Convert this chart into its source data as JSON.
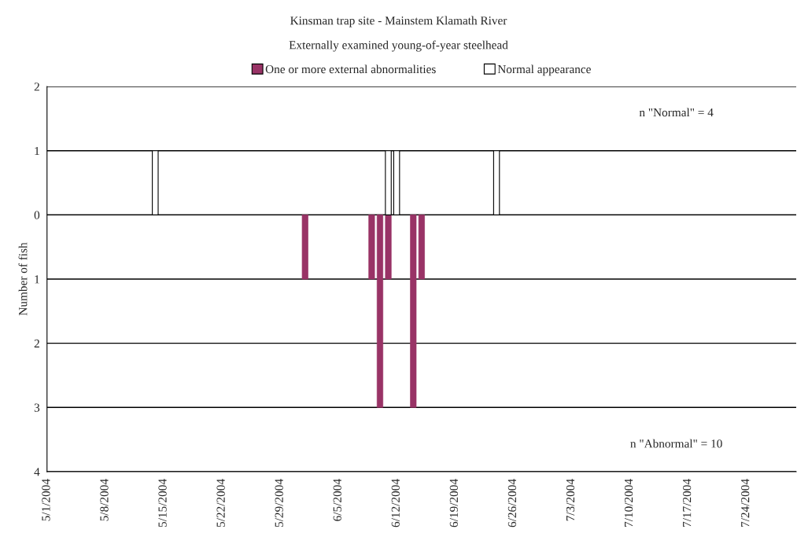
{
  "chart_data": {
    "type": "bar",
    "title": "Kinsman trap site - Mainstem Klamath River",
    "subtitle": "Externally examined young-of-year steelhead",
    "ylabel": "Number of fish",
    "series": [
      {
        "name": "One or more external abnormalities",
        "color": "#993366",
        "x": [
          "2004-06-01",
          "2004-06-09",
          "2004-06-10",
          "2004-06-11",
          "2004-06-14",
          "2004-06-15"
        ],
        "values": [
          -1,
          -1,
          -3,
          -1,
          -3,
          -1
        ]
      },
      {
        "name": "Normal appearance",
        "color": "#ffffff",
        "x": [
          "2004-05-14",
          "2004-06-11",
          "2004-06-12",
          "2004-06-24"
        ],
        "values": [
          1,
          1,
          1,
          1
        ]
      }
    ],
    "xlim": [
      "2004-05-01",
      "2004-07-30"
    ],
    "xticks": [
      {
        "value": "2004-05-01",
        "label": "5/1/2004"
      },
      {
        "value": "2004-05-08",
        "label": "5/8/2004"
      },
      {
        "value": "2004-05-15",
        "label": "5/15/2004"
      },
      {
        "value": "2004-05-22",
        "label": "5/22/2004"
      },
      {
        "value": "2004-05-29",
        "label": "5/29/2004"
      },
      {
        "value": "2004-06-05",
        "label": "6/5/2004"
      },
      {
        "value": "2004-06-12",
        "label": "6/12/2004"
      },
      {
        "value": "2004-06-19",
        "label": "6/19/2004"
      },
      {
        "value": "2004-06-26",
        "label": "6/26/2004"
      },
      {
        "value": "2004-07-03",
        "label": "7/3/2004"
      },
      {
        "value": "2004-07-10",
        "label": "7/10/2004"
      },
      {
        "value": "2004-07-17",
        "label": "7/17/2004"
      },
      {
        "value": "2004-07-24",
        "label": "7/24/2004"
      }
    ],
    "ylim": [
      -4,
      2
    ],
    "yticks": [
      {
        "value": -4,
        "label": "4"
      },
      {
        "value": -3,
        "label": "3"
      },
      {
        "value": -2,
        "label": "2"
      },
      {
        "value": -1,
        "label": "1"
      },
      0,
      1,
      2
    ],
    "grid": "y",
    "legend": "top",
    "annotations": [
      "n \"Normal\" = 4",
      "n \"Abnormal\" = 10"
    ]
  }
}
